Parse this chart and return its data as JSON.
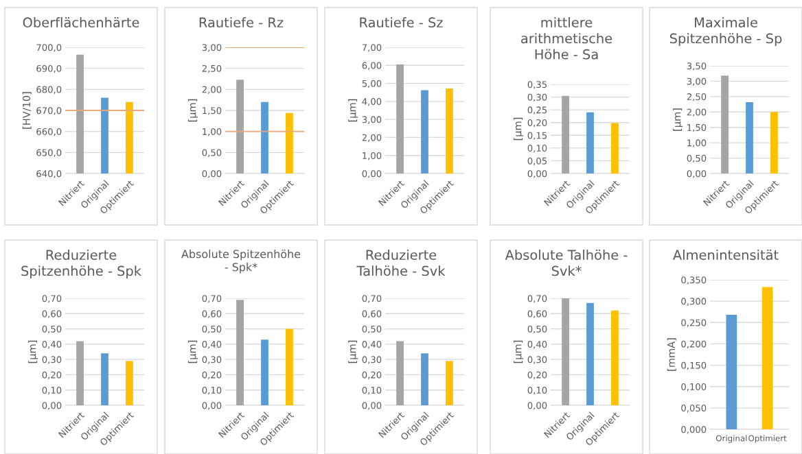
{
  "chart_data": [
    {
      "type": "bar",
      "title": "Oberflächenhärte",
      "ylabel": "[HV/10]",
      "categories": [
        "Nitriert",
        "Original",
        "Optimiert"
      ],
      "values": [
        696.5,
        676,
        674
      ],
      "colors": [
        "#a5a5a5",
        "#5b9bd5",
        "#ffc000"
      ],
      "ylim": [
        640,
        700
      ],
      "yticks": [
        {
          "value": 640,
          "label": "640,0"
        },
        {
          "value": 650,
          "label": "650,0"
        },
        {
          "value": 660,
          "label": "660,0"
        },
        {
          "value": 670,
          "label": "670,0"
        },
        {
          "value": 680,
          "label": "680,0"
        },
        {
          "value": 690,
          "label": "690,0"
        },
        {
          "value": 700,
          "label": "700,0"
        }
      ],
      "grid": "y",
      "ref_lines": [
        {
          "axis": "y",
          "value": 670,
          "color": "#e9a77a"
        }
      ]
    },
    {
      "type": "bar",
      "title": "Rautiefe - Rz",
      "ylabel": "[µm]",
      "categories": [
        "Nitriert",
        "Original",
        "Optimiert"
      ],
      "values": [
        2.23,
        1.7,
        1.44
      ],
      "colors": [
        "#a5a5a5",
        "#5b9bd5",
        "#ffc000"
      ],
      "ylim": [
        0,
        3
      ],
      "yticks": [
        {
          "value": 0,
          "label": "0,00"
        },
        {
          "value": 0.5,
          "label": "0,50"
        },
        {
          "value": 1,
          "label": "1,00"
        },
        {
          "value": 1.5,
          "label": "1,50"
        },
        {
          "value": 2,
          "label": "2,00"
        },
        {
          "value": 2.5,
          "label": "2,50"
        },
        {
          "value": 3,
          "label": "3,00"
        }
      ],
      "grid": "y",
      "ref_lines": [
        {
          "axis": "y",
          "value": 3,
          "color": "#e9a77a"
        },
        {
          "axis": "y",
          "value": 1,
          "color": "#e9a77a"
        }
      ]
    },
    {
      "type": "bar",
      "title": "Rautiefe - Sz",
      "ylabel": "[µm]",
      "categories": [
        "Nitriert",
        "Original",
        "Optimiert"
      ],
      "values": [
        6.05,
        4.62,
        4.72
      ],
      "colors": [
        "#a5a5a5",
        "#5b9bd5",
        "#ffc000"
      ],
      "ylim": [
        0,
        7
      ],
      "yticks": [
        {
          "value": 0,
          "label": "0,00"
        },
        {
          "value": 1,
          "label": "1,00"
        },
        {
          "value": 2,
          "label": "2,00"
        },
        {
          "value": 3,
          "label": "3,00"
        },
        {
          "value": 4,
          "label": "4,00"
        },
        {
          "value": 5,
          "label": "5,00"
        },
        {
          "value": 6,
          "label": "6,00"
        },
        {
          "value": 7,
          "label": "7,00"
        }
      ],
      "grid": "y"
    },
    {
      "type": "bar",
      "title": "mittlere\narithmetische\nHöhe - Sa",
      "ylabel": "[µm]",
      "categories": [
        "Nitriert",
        "Original",
        "Optimiert"
      ],
      "values": [
        0.305,
        0.24,
        0.198
      ],
      "colors": [
        "#a5a5a5",
        "#5b9bd5",
        "#ffc000"
      ],
      "ylim": [
        0,
        0.35
      ],
      "yticks": [
        {
          "value": 0,
          "label": "0,00"
        },
        {
          "value": 0.05,
          "label": "0,05"
        },
        {
          "value": 0.1,
          "label": "0,10"
        },
        {
          "value": 0.15,
          "label": "0,15"
        },
        {
          "value": 0.2,
          "label": "0,20"
        },
        {
          "value": 0.25,
          "label": "0,25"
        },
        {
          "value": 0.3,
          "label": "0,30"
        },
        {
          "value": 0.35,
          "label": "0,35"
        }
      ],
      "grid": "y"
    },
    {
      "type": "bar",
      "title": "Maximale\nSpitzenhöhe - Sp",
      "ylabel": "[µm]",
      "categories": [
        "Nitriert",
        "Original",
        "Optimiert"
      ],
      "values": [
        3.18,
        2.32,
        2.0
      ],
      "colors": [
        "#a5a5a5",
        "#5b9bd5",
        "#ffc000"
      ],
      "ylim": [
        0,
        3.5
      ],
      "yticks": [
        {
          "value": 0,
          "label": "0,00"
        },
        {
          "value": 0.5,
          "label": "0,50"
        },
        {
          "value": 1,
          "label": "1,00"
        },
        {
          "value": 1.5,
          "label": "1,50"
        },
        {
          "value": 2,
          "label": "2,00"
        },
        {
          "value": 2.5,
          "label": "2,50"
        },
        {
          "value": 3,
          "label": "3,00"
        },
        {
          "value": 3.5,
          "label": "3,50"
        }
      ],
      "grid": "y"
    },
    {
      "type": "bar",
      "title": "Reduzierte\nSpitzenhöhe - Spk",
      "ylabel": "[µm]",
      "categories": [
        "Nitriert",
        "Original",
        "Optimiert"
      ],
      "values": [
        0.42,
        0.34,
        0.29
      ],
      "colors": [
        "#a5a5a5",
        "#5b9bd5",
        "#ffc000"
      ],
      "ylim": [
        0,
        0.7
      ],
      "yticks": [
        {
          "value": 0,
          "label": "0,00"
        },
        {
          "value": 0.1,
          "label": "0,10"
        },
        {
          "value": 0.2,
          "label": "0,20"
        },
        {
          "value": 0.3,
          "label": "0,30"
        },
        {
          "value": 0.4,
          "label": "0,40"
        },
        {
          "value": 0.5,
          "label": "0,50"
        },
        {
          "value": 0.6,
          "label": "0,60"
        },
        {
          "value": 0.7,
          "label": "0,70"
        }
      ],
      "grid": "y"
    },
    {
      "type": "bar",
      "title": "Absolute Spitzenhöhe\n- Spk*",
      "ylabel": "[µm]",
      "categories": [
        "Nitriert",
        "Original",
        "Optimiert"
      ],
      "values": [
        0.69,
        0.43,
        0.5
      ],
      "colors": [
        "#a5a5a5",
        "#5b9bd5",
        "#ffc000"
      ],
      "ylim": [
        0,
        0.7
      ],
      "yticks": [
        {
          "value": 0,
          "label": "0,00"
        },
        {
          "value": 0.1,
          "label": "0,10"
        },
        {
          "value": 0.2,
          "label": "0,20"
        },
        {
          "value": 0.3,
          "label": "0,30"
        },
        {
          "value": 0.4,
          "label": "0,40"
        },
        {
          "value": 0.5,
          "label": "0,50"
        },
        {
          "value": 0.6,
          "label": "0,60"
        },
        {
          "value": 0.7,
          "label": "0,70"
        }
      ],
      "grid": "y"
    },
    {
      "type": "bar",
      "title": "Reduzierte\nTalhöhe - Svk",
      "ylabel": "[µm]",
      "categories": [
        "Nitriert",
        "Original",
        "Optimiert"
      ],
      "values": [
        0.42,
        0.34,
        0.29
      ],
      "colors": [
        "#a5a5a5",
        "#5b9bd5",
        "#ffc000"
      ],
      "ylim": [
        0,
        0.7
      ],
      "yticks": [
        {
          "value": 0,
          "label": "0,00"
        },
        {
          "value": 0.1,
          "label": "0,10"
        },
        {
          "value": 0.2,
          "label": "0,20"
        },
        {
          "value": 0.3,
          "label": "0,30"
        },
        {
          "value": 0.4,
          "label": "0,40"
        },
        {
          "value": 0.5,
          "label": "0,50"
        },
        {
          "value": 0.6,
          "label": "0,60"
        },
        {
          "value": 0.7,
          "label": "0,70"
        }
      ],
      "grid": "y"
    },
    {
      "type": "bar",
      "title": "Absolute Talhöhe -\nSvk*",
      "ylabel": "[µm]",
      "categories": [
        "Nitriert",
        "Original",
        "Optimiert"
      ],
      "values": [
        0.7,
        0.67,
        0.62
      ],
      "colors": [
        "#a5a5a5",
        "#5b9bd5",
        "#ffc000"
      ],
      "ylim": [
        0,
        0.7
      ],
      "yticks": [
        {
          "value": 0,
          "label": "0,00"
        },
        {
          "value": 0.1,
          "label": "0,10"
        },
        {
          "value": 0.2,
          "label": "0,20"
        },
        {
          "value": 0.3,
          "label": "0,30"
        },
        {
          "value": 0.4,
          "label": "0,40"
        },
        {
          "value": 0.5,
          "label": "0,50"
        },
        {
          "value": 0.6,
          "label": "0,60"
        },
        {
          "value": 0.7,
          "label": "0,70"
        }
      ],
      "grid": "y"
    },
    {
      "type": "bar",
      "title": "Almenintensität",
      "ylabel": "[mmA]",
      "categories": [
        "Original",
        "Optimiert"
      ],
      "values": [
        0.268,
        0.333
      ],
      "colors": [
        "#5b9bd5",
        "#ffc000"
      ],
      "ylim": [
        0,
        0.35
      ],
      "yticks": [
        {
          "value": 0,
          "label": "0,000"
        },
        {
          "value": 0.05,
          "label": "0,050"
        },
        {
          "value": 0.1,
          "label": "0,100"
        },
        {
          "value": 0.15,
          "label": "0,150"
        },
        {
          "value": 0.2,
          "label": "0,200"
        },
        {
          "value": 0.25,
          "label": "0,250"
        },
        {
          "value": 0.3,
          "label": "0,300"
        },
        {
          "value": 0.35,
          "label": "0,350"
        }
      ],
      "grid": "y"
    }
  ]
}
